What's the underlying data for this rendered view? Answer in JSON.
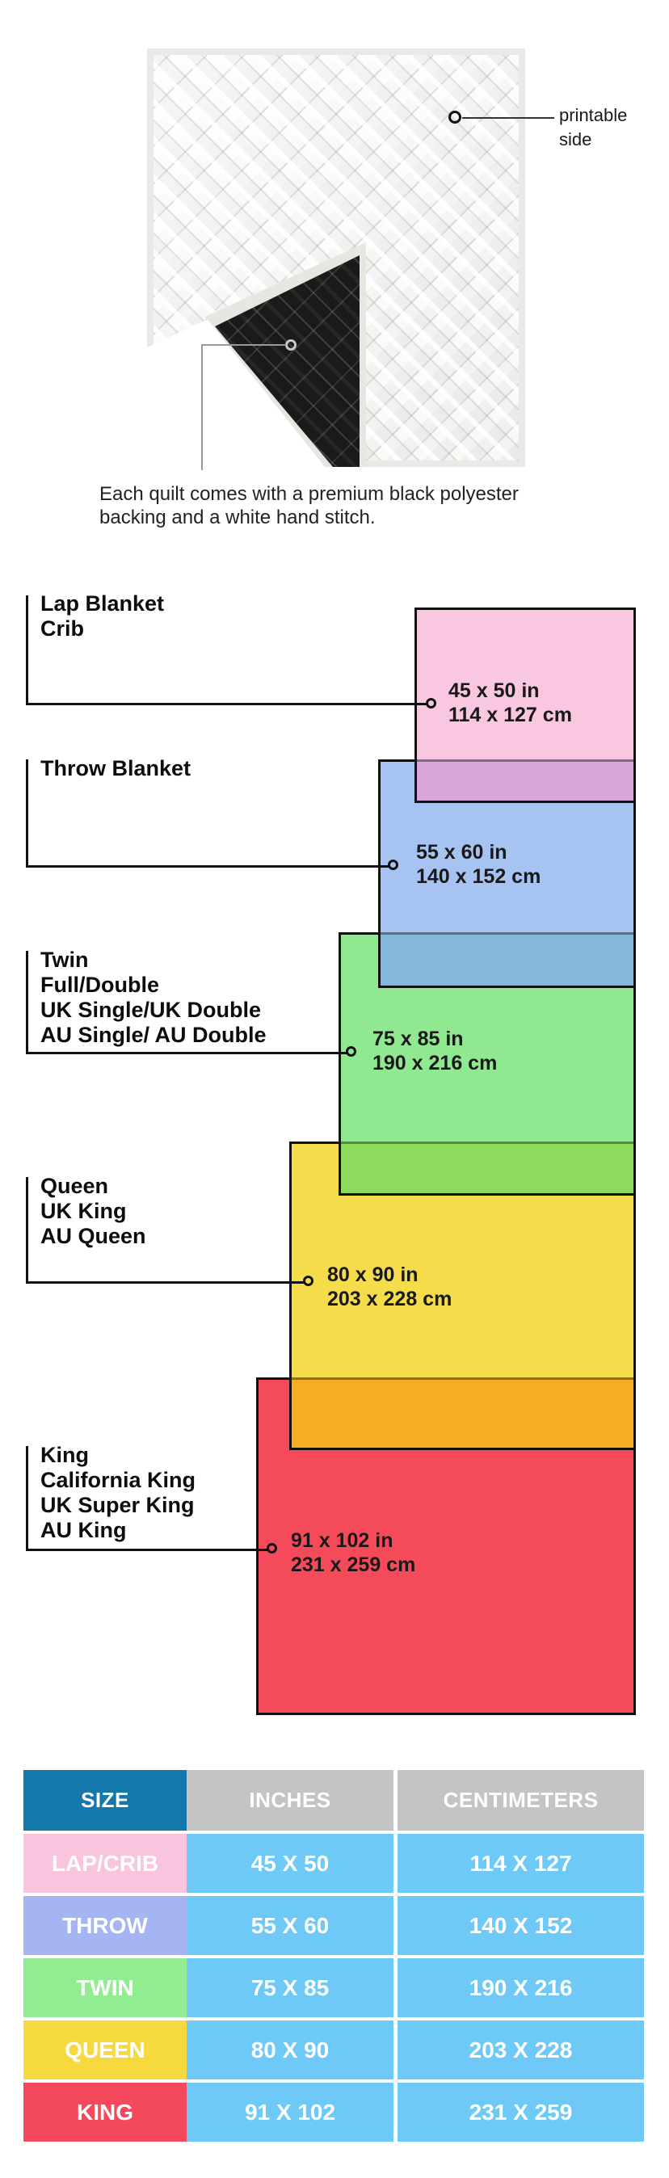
{
  "quilt": {
    "printable_label": "printable side",
    "caption_line1": "Each quilt comes with a premium black polyester",
    "caption_line2": "backing and a white hand stitch."
  },
  "diagram": {
    "items": [
      {
        "labels": [
          "Lap Blanket",
          "Crib"
        ],
        "inches": "45 x 50 in",
        "cm": "114 x 127 cm",
        "color": "#f9c8e0"
      },
      {
        "labels": [
          "Throw Blanket"
        ],
        "inches": "55 x 60 in",
        "cm": "140 x 152 cm",
        "color": "#a6c3f2"
      },
      {
        "labels": [
          "Twin",
          "Full/Double",
          "UK Single/UK Double",
          "AU Single/ AU Double"
        ],
        "inches": "75 x 85 in",
        "cm": "190 x 216 cm",
        "color": "#90e890"
      },
      {
        "labels": [
          "Queen",
          "UK King",
          "AU Queen"
        ],
        "inches": "80 x 90 in",
        "cm": "203 x 228 cm",
        "color": "#f5dc4a"
      },
      {
        "labels": [
          "King",
          "California King",
          "UK Super King",
          "AU King"
        ],
        "inches": "91 x 102 in",
        "cm": "231 x 259 cm",
        "color": "#f54a5a"
      }
    ],
    "overlap_colors": [
      "#d9a6da",
      "#83b8dc",
      "#8edc5e",
      "#f5ae24"
    ]
  },
  "table": {
    "headers": [
      "SIZE",
      "INCHES",
      "CENTIMETERS"
    ],
    "header_size_color": "#1478ab",
    "header_other_color": "#c4c4c4",
    "cell_color": "#6ec9f7",
    "rows": [
      {
        "size": "LAP/CRIB",
        "inches": "45 X 50",
        "cm": "114 X 127",
        "color": "#f9c5de"
      },
      {
        "size": "THROW",
        "inches": "55 X 60",
        "cm": "140 X 152",
        "color": "#a5b5f4"
      },
      {
        "size": "TWIN",
        "inches": "75 X 85",
        "cm": "190 X 216",
        "color": "#92ec92"
      },
      {
        "size": "QUEEN",
        "inches": "80 X 90",
        "cm": "203 X 228",
        "color": "#f5d93e"
      },
      {
        "size": "KING",
        "inches": "91 X 102",
        "cm": "231 X 259",
        "color": "#f4495c"
      }
    ]
  }
}
